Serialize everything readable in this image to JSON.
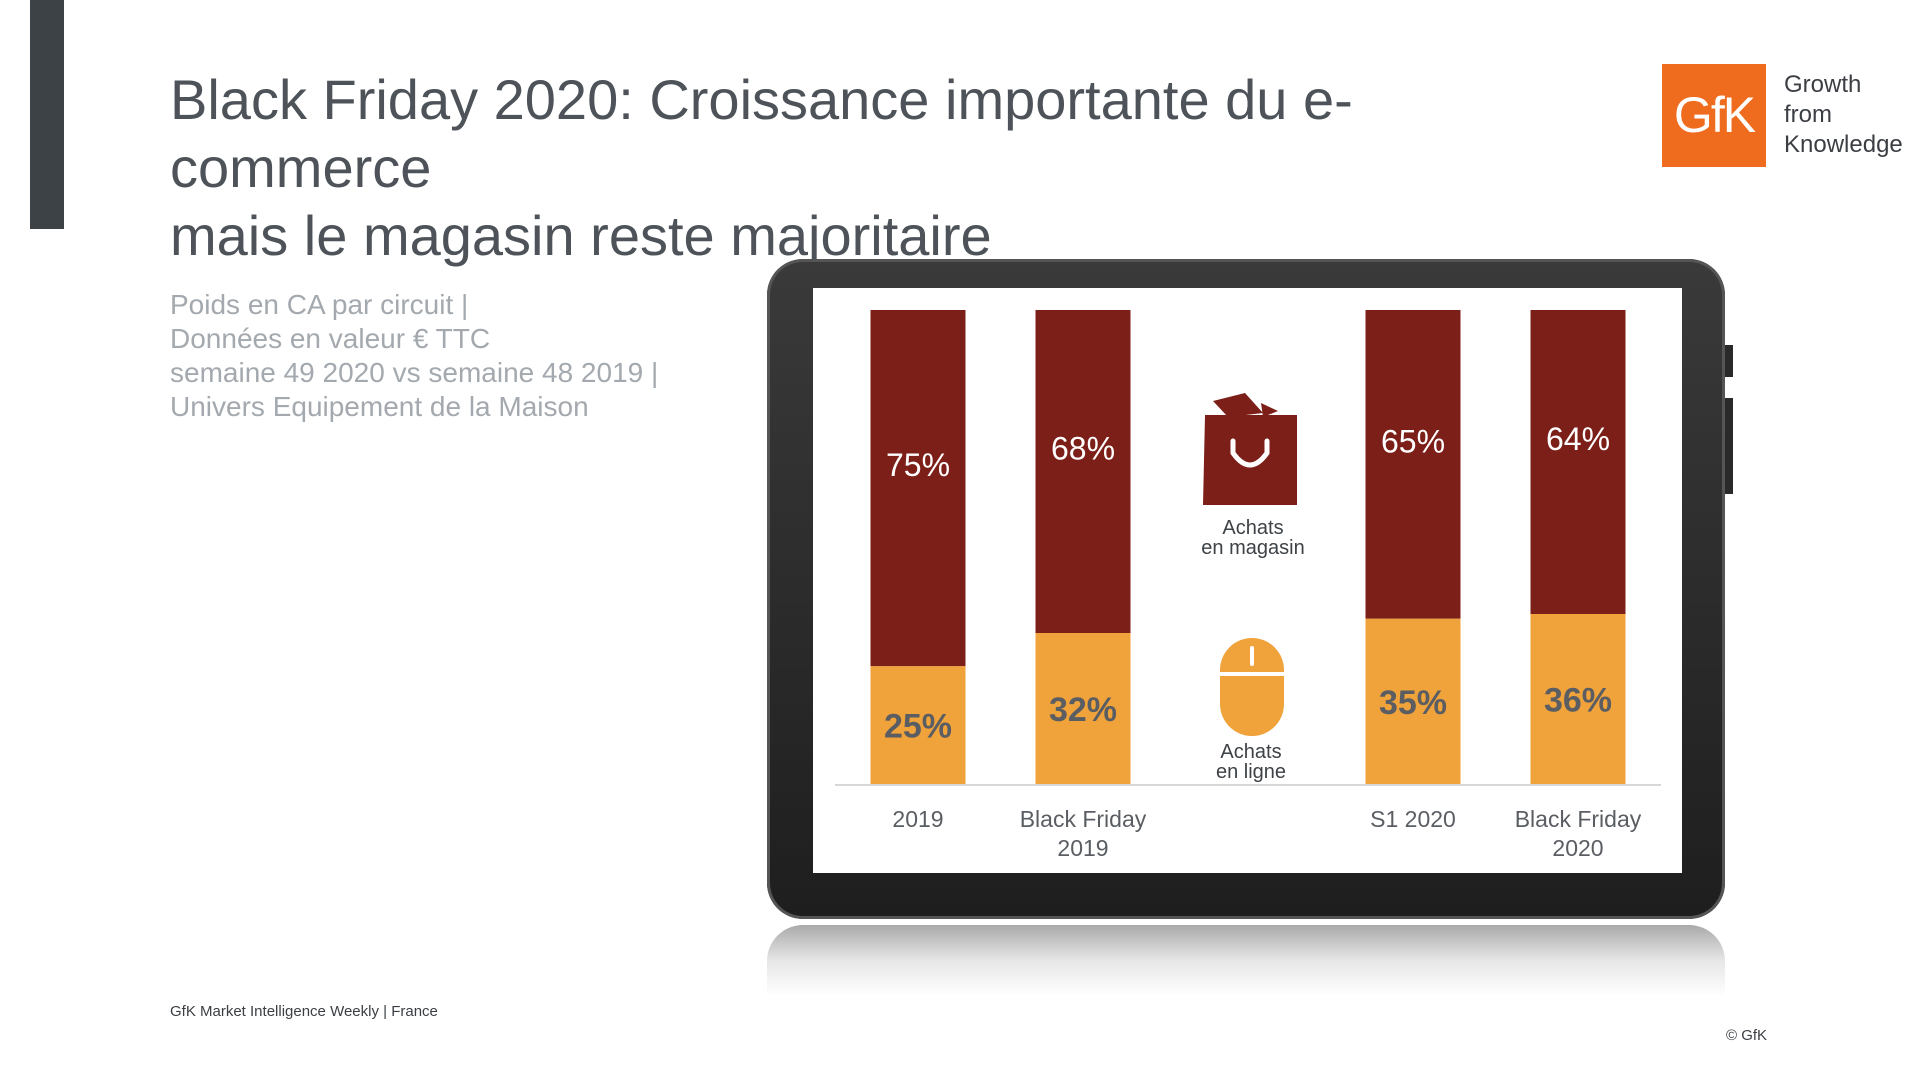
{
  "title_line1": "Black Friday 2020: Croissance importante du e-commerce",
  "title_line2": "mais le magasin reste majoritaire",
  "subtitle_lines": [
    "Poids en CA par circuit |",
    "Données en valeur € TTC",
    "semaine 49 2020 vs semaine 48 2019 |",
    "Univers Equipement de la Maison"
  ],
  "logo": {
    "mark": "GfK",
    "tagline": [
      "Growth",
      "from",
      "Knowledge"
    ],
    "color": "#ef6b1d"
  },
  "footer": "GfK Market Intelligence Weekly | France",
  "copyright": "© GfK",
  "legend": {
    "store_label": [
      "Achats",
      "en magasin"
    ],
    "store_icon": "shopping-bag-icon",
    "online_label": [
      "Achats",
      "en ligne"
    ],
    "online_icon": "computer-mouse-icon"
  },
  "chart_data": {
    "type": "bar",
    "stacked": true,
    "normalized": true,
    "categories": [
      [
        "2019"
      ],
      [
        "Black Friday",
        "2019"
      ],
      [
        "S1 2020"
      ],
      [
        "Black Friday",
        "2020"
      ]
    ],
    "series": [
      {
        "name": "Achats en ligne",
        "values": [
          25,
          32,
          35,
          36
        ],
        "labels": [
          "25%",
          "32%",
          "35%",
          "36%"
        ],
        "color": "#f0a23b"
      },
      {
        "name": "Achats en magasin",
        "values": [
          75,
          68,
          65,
          64
        ],
        "labels": [
          "75%",
          "68%",
          "65%",
          "64%"
        ],
        "color": "#7c1f18"
      }
    ],
    "ylim": [
      0,
      100
    ],
    "grid": false
  }
}
